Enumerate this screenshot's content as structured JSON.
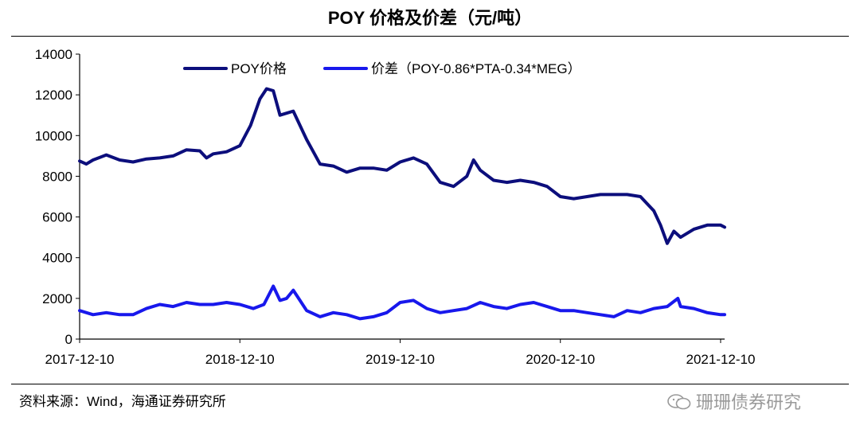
{
  "chart_data": {
    "type": "line",
    "title": "POY 价格及价差（元/吨）",
    "xlabel": "",
    "ylabel": "",
    "ylim": [
      0,
      14000
    ],
    "yticks": [
      0,
      2000,
      4000,
      6000,
      8000,
      10000,
      12000,
      14000
    ],
    "xticks": [
      "2017-12-10",
      "2018-12-10",
      "2019-12-10",
      "2020-12-10",
      "2021-12-10"
    ],
    "x_unit": "months since 2017-12-10",
    "xlim": [
      0,
      48.3
    ],
    "legend_position": "top",
    "series": [
      {
        "name": "POY价格",
        "color": "#0c0e7c",
        "points": [
          [
            0,
            8750
          ],
          [
            0.5,
            8600
          ],
          [
            1,
            8800
          ],
          [
            2,
            9050
          ],
          [
            3,
            8800
          ],
          [
            4,
            8700
          ],
          [
            5,
            8850
          ],
          [
            6,
            8900
          ],
          [
            7,
            9000
          ],
          [
            8,
            9300
          ],
          [
            9,
            9250
          ],
          [
            9.5,
            8900
          ],
          [
            10,
            9100
          ],
          [
            11,
            9200
          ],
          [
            12,
            9500
          ],
          [
            12.8,
            10500
          ],
          [
            13.5,
            11800
          ],
          [
            14,
            12300
          ],
          [
            14.5,
            12200
          ],
          [
            15,
            11000
          ],
          [
            15.5,
            11100
          ],
          [
            16,
            11200
          ],
          [
            16.5,
            10500
          ],
          [
            17,
            9800
          ],
          [
            17.5,
            9200
          ],
          [
            18,
            8600
          ],
          [
            19,
            8500
          ],
          [
            20,
            8200
          ],
          [
            21,
            8400
          ],
          [
            22,
            8400
          ],
          [
            23,
            8300
          ],
          [
            24,
            8700
          ],
          [
            25,
            8900
          ],
          [
            26,
            8600
          ],
          [
            27,
            7700
          ],
          [
            28,
            7500
          ],
          [
            29,
            8000
          ],
          [
            29.5,
            8800
          ],
          [
            30,
            8300
          ],
          [
            31,
            7800
          ],
          [
            32,
            7700
          ],
          [
            33,
            7800
          ],
          [
            34,
            7700
          ],
          [
            35,
            7500
          ],
          [
            36,
            7000
          ],
          [
            37,
            6900
          ],
          [
            38,
            7000
          ],
          [
            39,
            7100
          ],
          [
            40,
            7100
          ],
          [
            41,
            7100
          ],
          [
            42,
            7000
          ],
          [
            43,
            6300
          ],
          [
            43.5,
            5600
          ],
          [
            44,
            4700
          ],
          [
            44.5,
            5300
          ],
          [
            45,
            5000
          ],
          [
            46,
            5400
          ],
          [
            47,
            5600
          ],
          [
            48,
            5600
          ],
          [
            48.3,
            5500
          ]
        ]
      },
      {
        "name": "价差（POY-0.86*PTA-0.34*MEG）",
        "color": "#1818ec",
        "points": [
          [
            0,
            1400
          ],
          [
            1,
            1200
          ],
          [
            2,
            1300
          ],
          [
            3,
            1200
          ],
          [
            4,
            1200
          ],
          [
            5,
            1500
          ],
          [
            6,
            1700
          ],
          [
            7,
            1600
          ],
          [
            8,
            1800
          ],
          [
            9,
            1700
          ],
          [
            10,
            1700
          ],
          [
            11,
            1800
          ],
          [
            12,
            1700
          ],
          [
            13,
            1500
          ],
          [
            13.8,
            1700
          ],
          [
            14.5,
            2600
          ],
          [
            15,
            1900
          ],
          [
            15.5,
            2000
          ],
          [
            16,
            2400
          ],
          [
            16.5,
            1900
          ],
          [
            17,
            1400
          ],
          [
            18,
            1100
          ],
          [
            19,
            1300
          ],
          [
            20,
            1200
          ],
          [
            21,
            1000
          ],
          [
            22,
            1100
          ],
          [
            23,
            1300
          ],
          [
            24,
            1800
          ],
          [
            25,
            1900
          ],
          [
            26,
            1500
          ],
          [
            27,
            1300
          ],
          [
            28,
            1400
          ],
          [
            29,
            1500
          ],
          [
            30,
            1800
          ],
          [
            31,
            1600
          ],
          [
            32,
            1500
          ],
          [
            33,
            1700
          ],
          [
            34,
            1800
          ],
          [
            35,
            1600
          ],
          [
            36,
            1400
          ],
          [
            37,
            1400
          ],
          [
            38,
            1300
          ],
          [
            39,
            1200
          ],
          [
            40,
            1100
          ],
          [
            41,
            1400
          ],
          [
            42,
            1300
          ],
          [
            43,
            1500
          ],
          [
            44,
            1600
          ],
          [
            44.8,
            2000
          ],
          [
            45,
            1600
          ],
          [
            46,
            1500
          ],
          [
            47,
            1300
          ],
          [
            48,
            1200
          ],
          [
            48.3,
            1200
          ]
        ]
      }
    ]
  },
  "source_note": "资料来源：Wind，海通证券研究所",
  "watermark": "珊珊债券研究"
}
